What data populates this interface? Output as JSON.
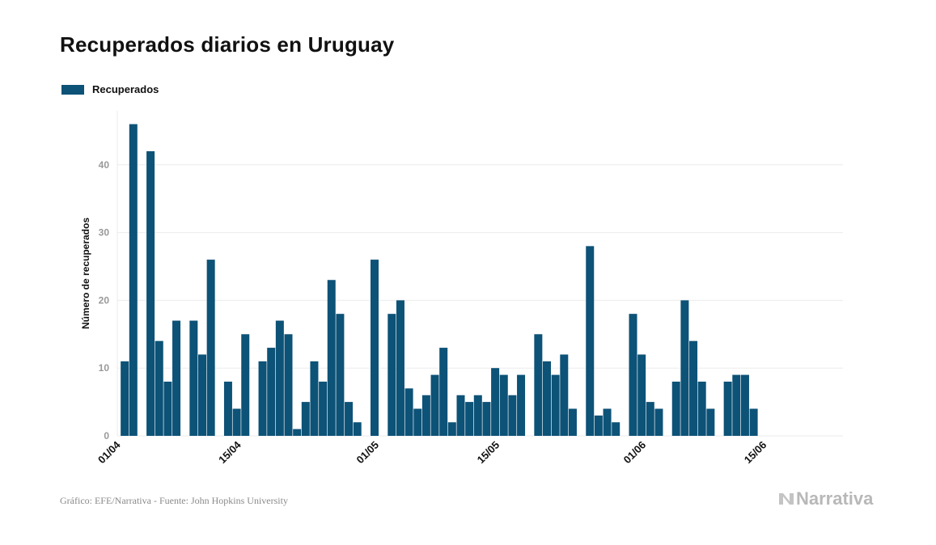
{
  "title": "Recuperados diarios en Uruguay",
  "legend_label": "Recuperados",
  "source": "Gráfico: EFE/Narrativa - Fuente: John Hopkins University",
  "brand": "Narrativa",
  "brand_icon": "narrativa-logo-icon",
  "colors": {
    "bar": "#0d5277",
    "grid": "#ebebeb",
    "tick": "#999999",
    "axis_title": "#111111"
  },
  "chart_data": {
    "type": "bar",
    "title": "Recuperados diarios en Uruguay",
    "xlabel": "",
    "ylabel": "Número de recuperados",
    "ylim": [
      0,
      48
    ],
    "yticks": [
      0,
      10,
      20,
      30,
      40
    ],
    "x_tick_labels": [
      "01/04",
      "15/04",
      "01/05",
      "15/05",
      "01/06",
      "15/06"
    ],
    "grid": true,
    "legend": "top-left",
    "categories": [
      "01/04",
      "02/04",
      "03/04",
      "04/04",
      "05/04",
      "06/04",
      "07/04",
      "08/04",
      "09/04",
      "10/04",
      "11/04",
      "12/04",
      "13/04",
      "14/04",
      "15/04",
      "16/04",
      "17/04",
      "18/04",
      "19/04",
      "20/04",
      "21/04",
      "22/04",
      "23/04",
      "24/04",
      "25/04",
      "26/04",
      "27/04",
      "28/04",
      "29/04",
      "30/04",
      "01/05",
      "02/05",
      "03/05",
      "04/05",
      "05/05",
      "06/05",
      "07/05",
      "08/05",
      "09/05",
      "10/05",
      "11/05",
      "12/05",
      "13/05",
      "14/05",
      "15/05",
      "16/05",
      "17/05",
      "18/05",
      "19/05",
      "20/05",
      "21/05",
      "22/05",
      "23/05",
      "24/05",
      "25/05",
      "26/05",
      "27/05",
      "28/05",
      "29/05",
      "30/05",
      "31/05",
      "01/06",
      "02/06",
      "03/06",
      "04/06",
      "05/06",
      "06/06",
      "07/06",
      "08/06",
      "09/06",
      "10/06",
      "11/06",
      "12/06",
      "13/06",
      "14/06",
      "15/06",
      "16/06",
      "17/06",
      "18/06",
      "19/06",
      "20/06"
    ],
    "series": [
      {
        "name": "Recuperados",
        "values": [
          0,
          11,
          46,
          0,
          42,
          14,
          8,
          17,
          0,
          17,
          12,
          26,
          0,
          8,
          4,
          15,
          0,
          11,
          13,
          17,
          15,
          1,
          5,
          11,
          8,
          23,
          18,
          5,
          2,
          0,
          26,
          0,
          18,
          20,
          7,
          4,
          6,
          9,
          13,
          2,
          6,
          5,
          6,
          5,
          10,
          9,
          6,
          9,
          0,
          15,
          11,
          9,
          12,
          4,
          0,
          28,
          3,
          4,
          2,
          0,
          18,
          12,
          5,
          4,
          0,
          8,
          20,
          14,
          8,
          4,
          0,
          8,
          9,
          9,
          4,
          0,
          0,
          0,
          0,
          0,
          0
        ]
      }
    ]
  }
}
